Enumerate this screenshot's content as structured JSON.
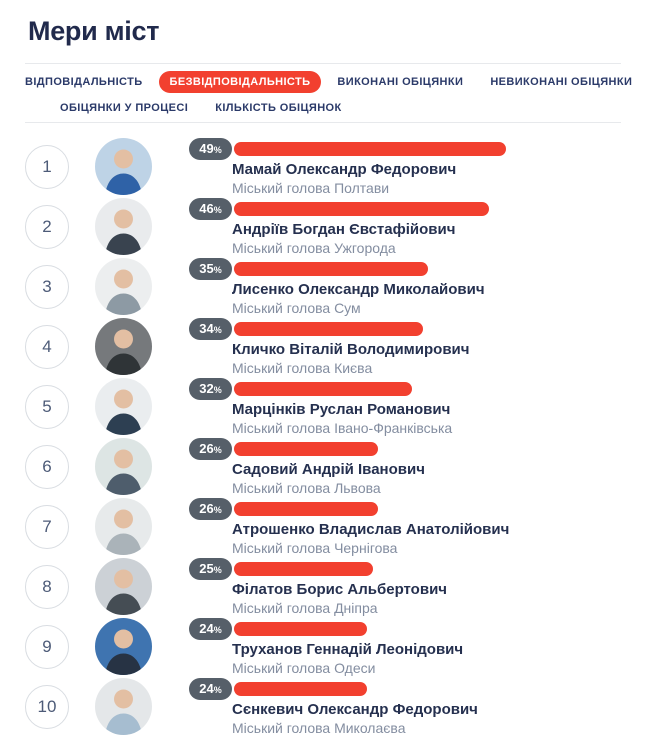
{
  "page": {
    "title": "Мери міст"
  },
  "ui": {
    "percent_suffix": "%",
    "colors": {
      "accent_red": "#f2402f",
      "badge_bg": "#565f69",
      "title_navy": "#212a4c",
      "tab_navy": "#2b3a69",
      "name_navy": "#25304f",
      "subtitle_gray": "#838da0",
      "rank_slate": "#4d5b78",
      "divider": "#e7e9ec",
      "avatar_skin": "#e3bfa3"
    }
  },
  "tabs": {
    "row1": [
      {
        "id": "vidpovidalnist",
        "label": "ВІДПОВІДАЛЬНІСТЬ",
        "active": false
      },
      {
        "id": "bezvidpovidalnist",
        "label": "БЕЗВІДПОВІДАЛЬНІСТЬ",
        "active": true
      },
      {
        "id": "vykonani-obitsianky",
        "label": "ВИКОНАНІ ОБІЦЯНКИ",
        "active": false
      },
      {
        "id": "nevykonani-obitsianky",
        "label": "НЕВИКОНАНІ ОБІЦЯНКИ",
        "active": false
      }
    ],
    "row2": [
      {
        "id": "obitsianky-u-protsesi",
        "label": "ОБІЦЯНКИ У ПРОЦЕСІ",
        "active": false
      },
      {
        "id": "kilkist-obitsianok",
        "label": "КІЛЬКІСТЬ ОБІЦЯНОК",
        "active": false
      }
    ]
  },
  "list": [
    {
      "rank": "1",
      "percent": 49,
      "name": "Мамай Олександр Федорович",
      "subtitle": "Міський голова Полтави",
      "avatar_bg": "#bed3e6",
      "avatar_suit": "#2f62a7"
    },
    {
      "rank": "2",
      "percent": 46,
      "name": "Андріїв Богдан Євстафійович",
      "subtitle": "Міський голова Ужгорода",
      "avatar_bg": "#e9ebed",
      "avatar_suit": "#39434f"
    },
    {
      "rank": "3",
      "percent": 35,
      "name": "Лисенко Олександр Миколайович",
      "subtitle": "Міський голова Сум",
      "avatar_bg": "#eceeef",
      "avatar_suit": "#8d9aa4"
    },
    {
      "rank": "4",
      "percent": 34,
      "name": "Кличко Віталій Володимирович",
      "subtitle": "Міський голова Києва",
      "avatar_bg": "#76797c",
      "avatar_suit": "#2f3437"
    },
    {
      "rank": "5",
      "percent": 32,
      "name": "Марцінків Руслан Романович",
      "subtitle": "Міський голова Івано-Франківська",
      "avatar_bg": "#eaedef",
      "avatar_suit": "#2d3f52"
    },
    {
      "rank": "6",
      "percent": 26,
      "name": "Садовий Андрій Іванович",
      "subtitle": "Міський голова Львова",
      "avatar_bg": "#dde5e4",
      "avatar_suit": "#4e5d6c"
    },
    {
      "rank": "7",
      "percent": 26,
      "name": "Атрошенко Владислав Анатолійович",
      "subtitle": "Міський голова Чернігова",
      "avatar_bg": "#e7eaeb",
      "avatar_suit": "#aab3b9"
    },
    {
      "rank": "8",
      "percent": 25,
      "name": "Філатов Борис Альбертович",
      "subtitle": "Міський голова Дніпра",
      "avatar_bg": "#ccd1d6",
      "avatar_suit": "#454d54"
    },
    {
      "rank": "9",
      "percent": 24,
      "name": "Труханов Геннадій Леонідович",
      "subtitle": "Міський голова Одеси",
      "avatar_bg": "#3f74b0",
      "avatar_suit": "#273344"
    },
    {
      "rank": "10",
      "percent": 24,
      "name": "Сєнкевич Олександр Федорович",
      "subtitle": "Міський голова Миколаєва",
      "avatar_bg": "#e4e7e9",
      "avatar_suit": "#a6bdd0"
    }
  ],
  "chart_data": {
    "type": "bar",
    "title": "Мери міст",
    "metric": "БЕЗВІДПОВІДАЛЬНІСТЬ",
    "unit": "%",
    "categories": [
      "Мамай Олександр Федорович",
      "Андріїв Богдан Євстафійович",
      "Лисенко Олександр Миколайович",
      "Кличко Віталій Володимирович",
      "Марцінків Руслан Романович",
      "Садовий Андрій Іванович",
      "Атрошенко Владислав Анатолійович",
      "Філатов Борис Альбертович",
      "Труханов Геннадій Леонідович",
      "Сєнкевич Олександр Федорович"
    ],
    "values": [
      49,
      46,
      35,
      34,
      32,
      26,
      26,
      25,
      24,
      24
    ],
    "orientation": "horizontal",
    "value_labels_shown": true
  }
}
